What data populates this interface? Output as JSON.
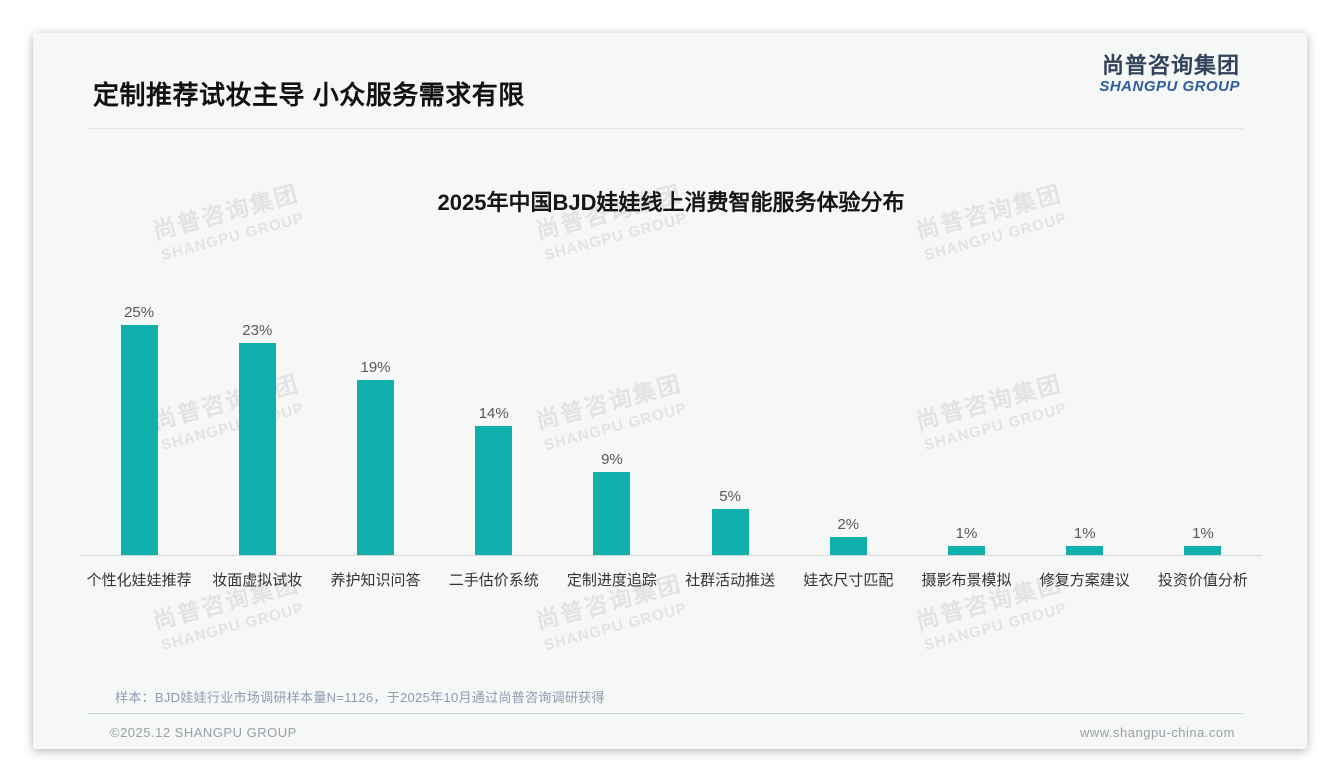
{
  "page": {
    "title": "定制推荐试妆主导 小众服务需求有限",
    "logo": {
      "cn": "尚普咨询集团",
      "en": "SHANGPU GROUP"
    },
    "watermark": {
      "cn": "尚普咨询集团",
      "en": "SHANGPU GROUP"
    },
    "note": "样本：BJD娃娃行业市场调研样本量N=1126，于2025年10月通过尚普咨询调研获得",
    "footer": {
      "copyright": "©2025.12 SHANGPU GROUP",
      "website": "www.shangpu-china.com"
    }
  },
  "chart_data": {
    "type": "bar",
    "title": "2025年中国BJD娃娃线上消费智能服务体验分布",
    "categories": [
      "个性化娃娃推荐",
      "妆面虚拟试妆",
      "养护知识问答",
      "二手估价系统",
      "定制进度追踪",
      "社群活动推送",
      "娃衣尺寸匹配",
      "摄影布景模拟",
      "修复方案建议",
      "投资价值分析"
    ],
    "values": [
      25,
      23,
      19,
      14,
      9,
      5,
      2,
      1,
      1,
      1
    ],
    "unit": "%",
    "ylim": [
      0,
      27
    ],
    "grid": false,
    "legend": false,
    "data_labels": true,
    "bar_color": "#0fb0ab",
    "value_label_color": "#595959",
    "category_label_color": "#333333"
  },
  "colors": {
    "accent_teal": "#0fb0ab",
    "logo_cn_text": "#33425b",
    "logo_en_text": "#2e5d9f",
    "card_background": "#f6f7f7",
    "header_divider": "#e3e4e5",
    "footer_divider": "#ccd6e0",
    "note_text": "#8e9bb3",
    "footer_text": "#9aa0a6",
    "watermark_text": "#e2e3e4"
  }
}
